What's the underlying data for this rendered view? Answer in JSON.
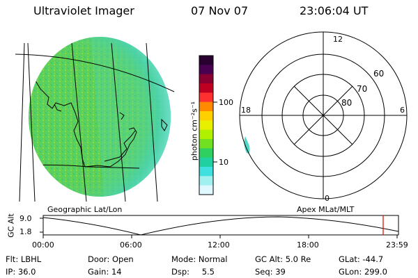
{
  "header": {
    "instrument": "Ultraviolet Imager",
    "date": "07 Nov 07",
    "time": "23:06:04 UT"
  },
  "colorbar": {
    "unit_label": "photon cm⁻²s⁻¹",
    "ticks": [
      "100",
      "10"
    ],
    "colors": [
      "#2a0030",
      "#4a0050",
      "#8a0030",
      "#c00020",
      "#ff3030",
      "#ff8a00",
      "#ffd000",
      "#e8f000",
      "#b0f000",
      "#70e020",
      "#30d060",
      "#20d0a0",
      "#40e0e0",
      "#a0f0f0",
      "#e0f8ff"
    ]
  },
  "geo_panel": {
    "label": "Geographic Lat/Lon"
  },
  "polar_panel": {
    "label": "Apex MLat/MLT",
    "mlt_labels": {
      "top": "12",
      "bottom": "0",
      "left": "18",
      "right": "6"
    },
    "lat_labels": [
      "60",
      "70",
      "80"
    ]
  },
  "altitude_plot": {
    "ylabel": "GC Alt",
    "yticks": [
      "9.0",
      "1.8"
    ],
    "xticks": [
      "00:00",
      "06:00",
      "12:00",
      "18:00",
      "23:59"
    ],
    "marker_color": "#e00000"
  },
  "info": {
    "row1": [
      {
        "label": "Flt:",
        "value": "LBHL"
      },
      {
        "label": "Door:",
        "value": "Open"
      },
      {
        "label": "Mode:",
        "value": "Normal"
      },
      {
        "label": "GC Alt:",
        "value": "5.0 Re"
      },
      {
        "label": "GLat:",
        "value": "-44.7"
      }
    ],
    "row2": [
      {
        "label": "IP:",
        "value": "36.0"
      },
      {
        "label": "Gain:",
        "value": "14"
      },
      {
        "label": "Dsp:",
        "value": "5.5"
      },
      {
        "label": "Seq:",
        "value": "39"
      },
      {
        "label": "GLon:",
        "value": "299.0"
      }
    ]
  }
}
